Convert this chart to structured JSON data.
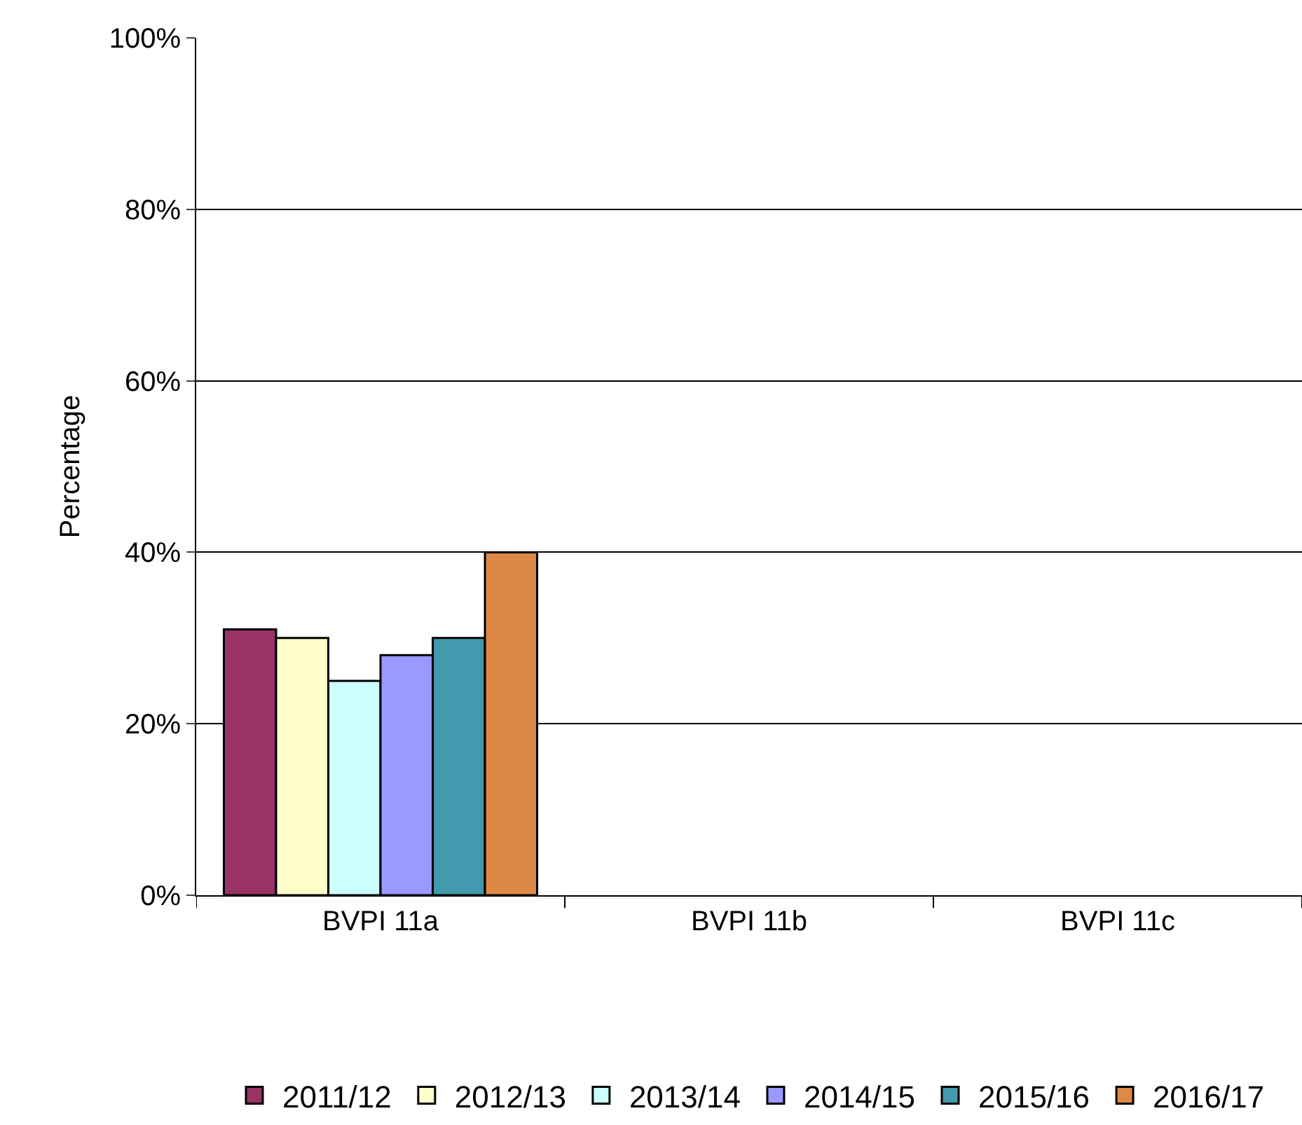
{
  "chart_data": {
    "type": "bar",
    "ylabel": "Percentage",
    "categories": [
      "BVPI 11a",
      "BVPI 11b",
      "BVPI 11c"
    ],
    "series": [
      {
        "name": "2011/12",
        "color": "#993366",
        "values": [
          31,
          null,
          null
        ]
      },
      {
        "name": "2012/13",
        "color": "#ffffcc",
        "values": [
          30,
          null,
          null
        ]
      },
      {
        "name": "2013/14",
        "color": "#ccffff",
        "values": [
          25,
          null,
          null
        ]
      },
      {
        "name": "2014/15",
        "color": "#9999ff",
        "values": [
          28,
          null,
          null
        ]
      },
      {
        "name": "2015/16",
        "color": "#4399ae",
        "values": [
          30,
          null,
          null
        ]
      },
      {
        "name": "2016/17",
        "color": "#dd8844",
        "values": [
          40,
          null,
          null
        ]
      }
    ],
    "ylim": [
      0,
      100
    ],
    "yticks": [
      {
        "value": 0,
        "label": "0%"
      },
      {
        "value": 20,
        "label": "20%"
      },
      {
        "value": 40,
        "label": "40%"
      },
      {
        "value": 60,
        "label": "60%"
      },
      {
        "value": 80,
        "label": "80%"
      },
      {
        "value": 100,
        "label": "100%"
      }
    ],
    "grid": "y",
    "legend": "bottom"
  }
}
